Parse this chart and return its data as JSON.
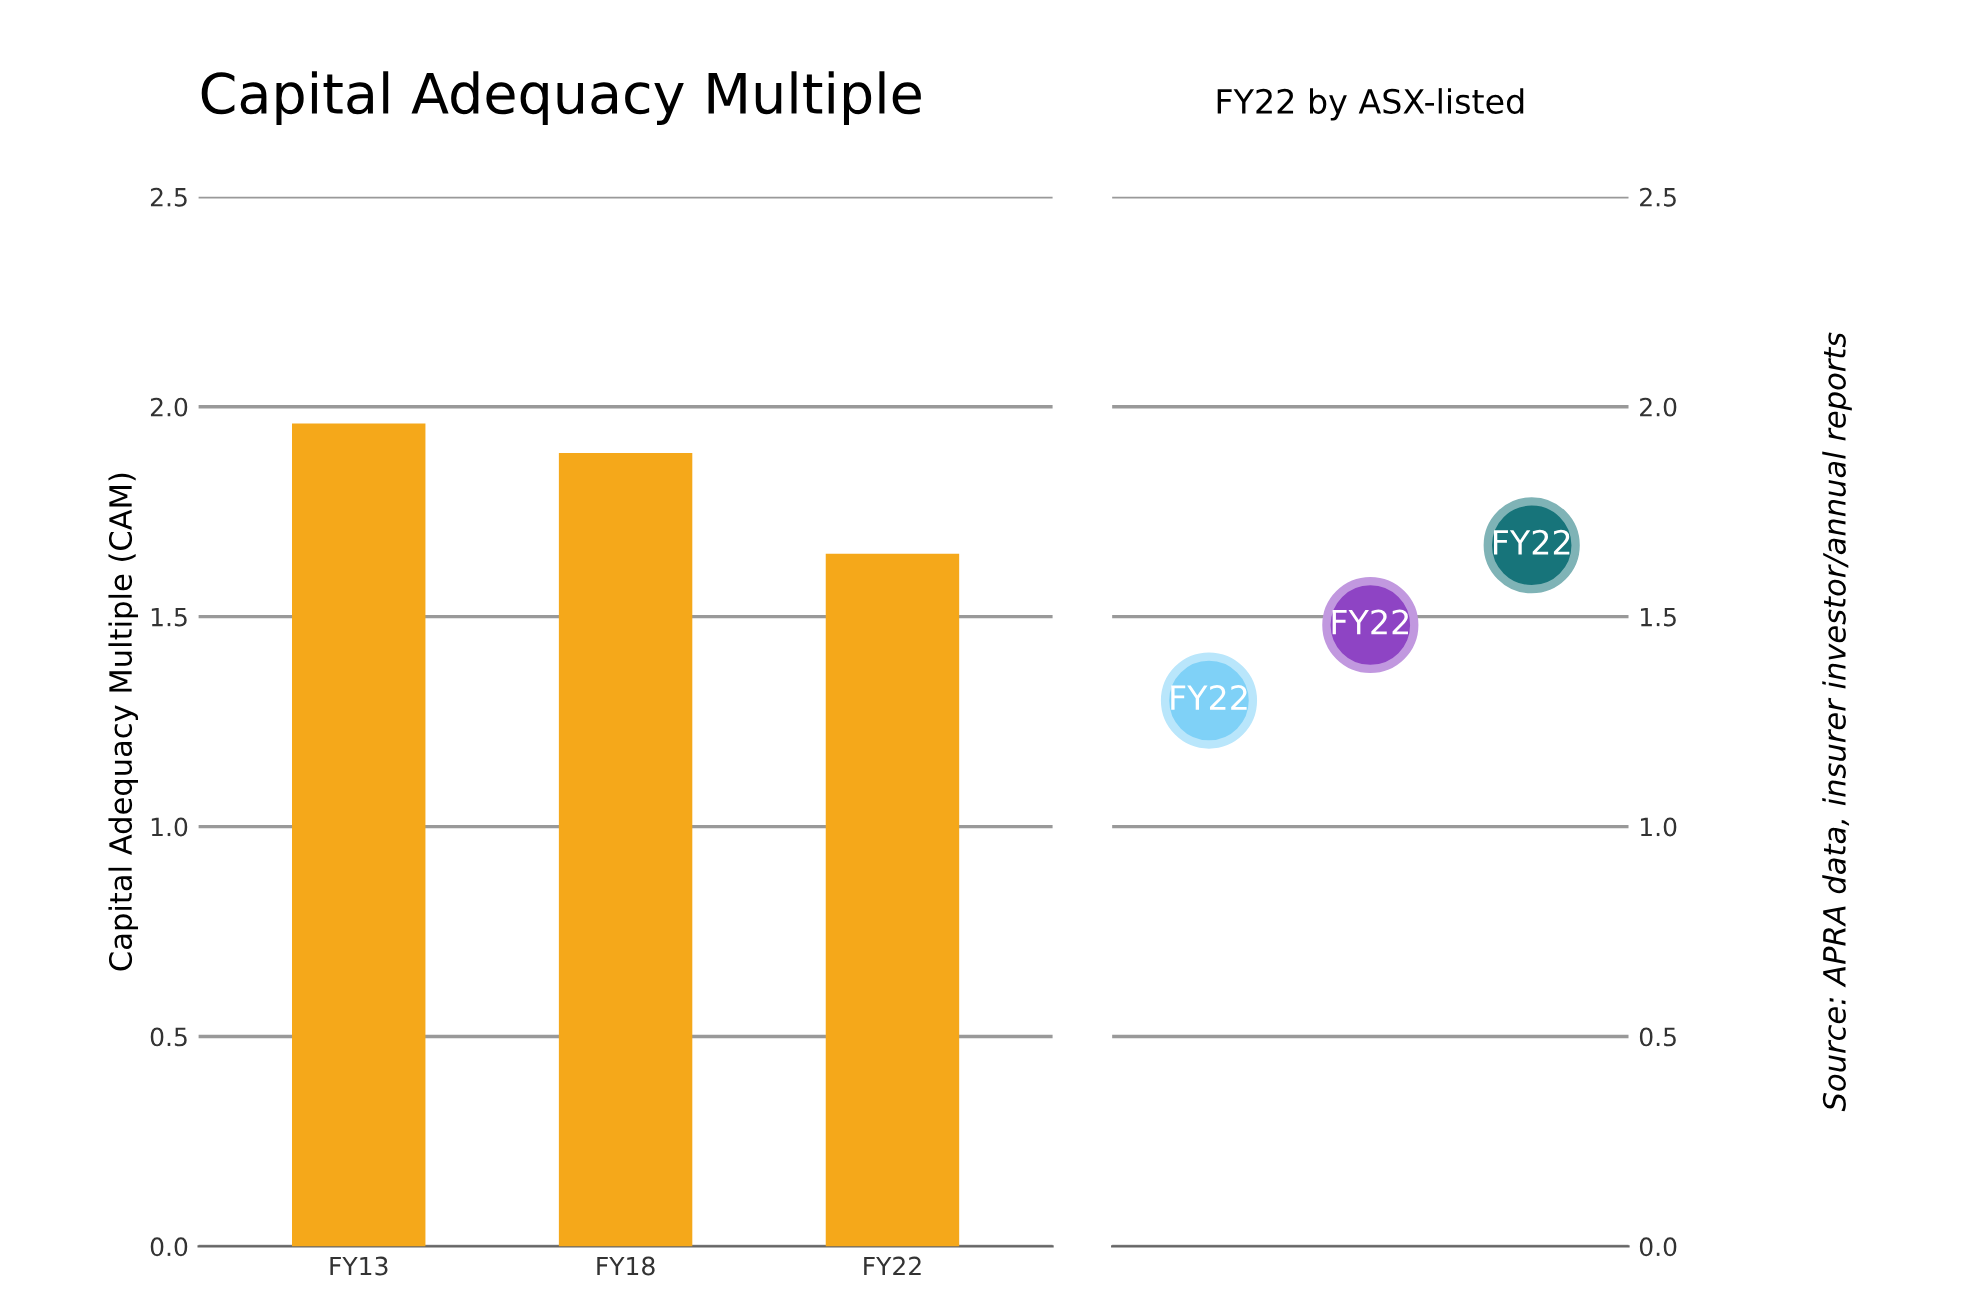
{
  "chart_data": [
    {
      "type": "bar",
      "title": "Capital Adequacy Multiple",
      "ylabel": "Capital Adequacy Multiple (CAM)",
      "categories": [
        "FY13",
        "FY18",
        "FY22"
      ],
      "values": [
        1.96,
        1.89,
        1.65
      ],
      "color": "#f5a81a",
      "ylim": [
        0,
        2.5
      ],
      "yticks": [
        {
          "value": 0,
          "label": "0.0"
        },
        0.5,
        {
          "value": 1,
          "label": "1.0"
        },
        1.5,
        {
          "value": 2,
          "label": "2.0"
        },
        2.5
      ],
      "grid": "y"
    },
    {
      "type": "scatter",
      "title": "FY22 by ASX-listed",
      "categories": [
        null,
        null,
        null
      ],
      "series": [
        {
          "axis": "y2",
          "values": [
            1.3,
            1.48,
            1.67
          ],
          "colors": [
            "#7fd1f7",
            "#8e44c4",
            "#17747a"
          ]
        }
      ],
      "y2lim": [
        0,
        2.5
      ],
      "y2ticks": [
        {
          "value": 0,
          "label": "0.0"
        },
        0.5,
        {
          "value": 1,
          "label": "1.0"
        },
        1.5,
        {
          "value": 2,
          "label": "2.0"
        },
        2.5
      ],
      "grid": "y",
      "marker": "circle",
      "annotations": [
        "FY22",
        "FY22",
        "FY22",
        "Source: APRA data, insurer investor/annual reports"
      ]
    }
  ]
}
